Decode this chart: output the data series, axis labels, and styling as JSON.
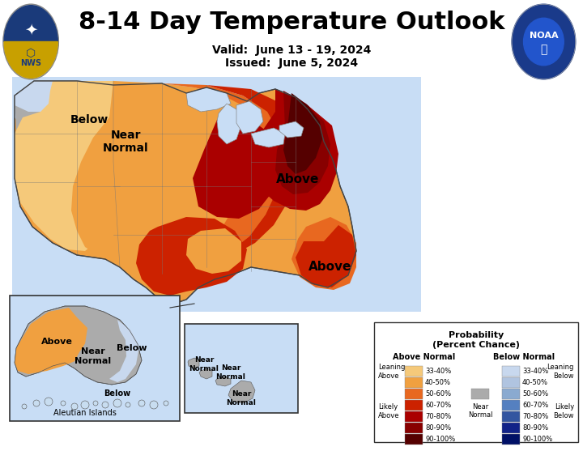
{
  "title": "8-14 Day Temperature Outlook",
  "valid_text": "Valid:  June 13 - 19, 2024",
  "issued_text": "Issued:  June 5, 2024",
  "bg_color": "#ffffff",
  "title_fontsize": 22,
  "subtitle_fontsize": 10,
  "zone_colors": {
    "below_33_40": "#c8d8ee",
    "below_40_50": "#b0c4e0",
    "near_normal": "#ababab",
    "above_33_40": "#f5c97a",
    "above_40_50": "#f0a040",
    "above_50_60": "#e86820",
    "above_60_70": "#cc2200",
    "above_70_80": "#aa0000",
    "above_80_90": "#880000",
    "above_90_100": "#550000"
  },
  "legend": {
    "above_colors": [
      "#f5c97a",
      "#f0a040",
      "#e86820",
      "#cc2200",
      "#aa0000",
      "#880000",
      "#550000"
    ],
    "below_colors": [
      "#c8d8ee",
      "#b0c4e0",
      "#8aaad0",
      "#5580c0",
      "#3355a0",
      "#112288",
      "#001066"
    ],
    "ranges": [
      "33-40%",
      "40-50%",
      "50-60%",
      "60-70%",
      "70-80%",
      "80-90%",
      "90-100%"
    ],
    "near_normal_color": "#ababab"
  }
}
